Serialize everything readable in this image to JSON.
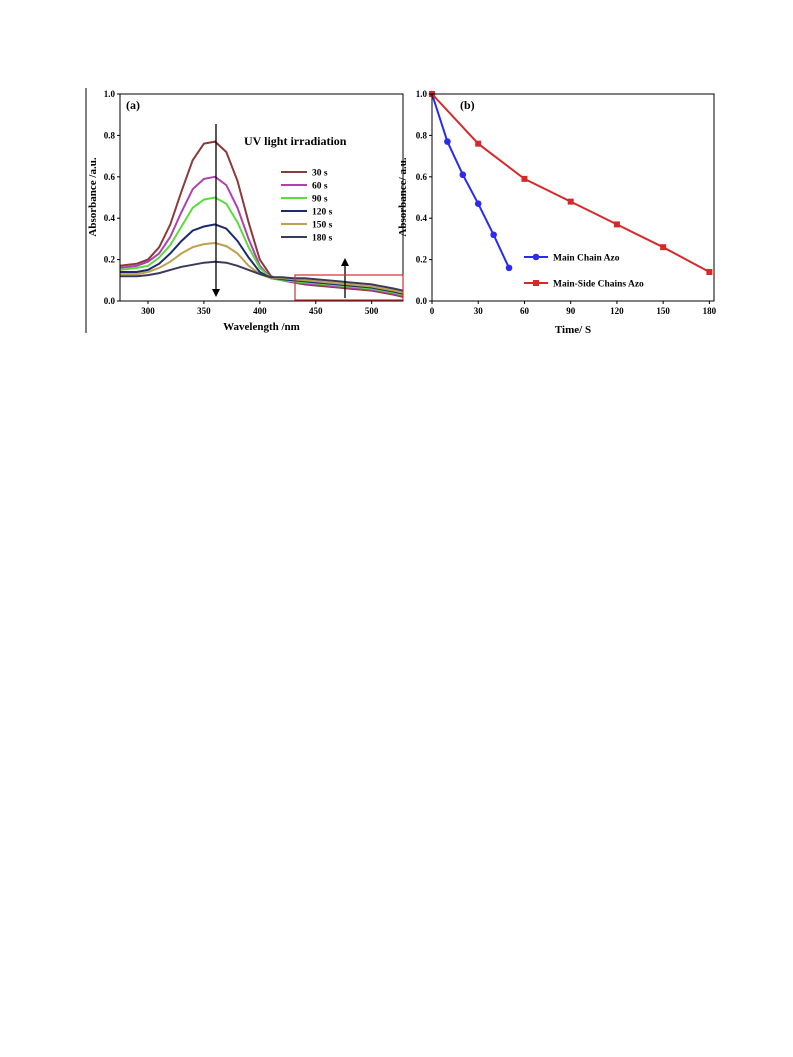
{
  "chart_data": [
    {
      "type": "line",
      "panel_label": "(a)",
      "xlabel": "Wavelength /nm",
      "ylabel": "Absorbance /a.u.",
      "xlim": [
        275,
        528
      ],
      "ylim": [
        0,
        1.0
      ],
      "xticks": [
        300,
        350,
        400,
        450,
        500
      ],
      "yticks": [
        0.0,
        0.2,
        0.4,
        0.6,
        0.8,
        1.0
      ],
      "annotation": "UV light irradiation",
      "legend_position": "top-right",
      "grid": false,
      "series": [
        {
          "name": "30 s",
          "color": "#8B3A3A",
          "x": [
            275,
            290,
            300,
            310,
            320,
            330,
            340,
            350,
            360,
            370,
            380,
            390,
            400,
            410,
            420,
            430,
            440,
            450,
            460,
            470,
            480,
            490,
            500,
            510,
            520,
            528
          ],
          "y": [
            0.17,
            0.18,
            0.2,
            0.26,
            0.37,
            0.53,
            0.68,
            0.76,
            0.77,
            0.72,
            0.58,
            0.38,
            0.2,
            0.12,
            0.1,
            0.09,
            0.08,
            0.075,
            0.07,
            0.065,
            0.06,
            0.055,
            0.05,
            0.04,
            0.03,
            0.02
          ]
        },
        {
          "name": "60 s",
          "color": "#B040B0",
          "x": [
            275,
            290,
            300,
            310,
            320,
            330,
            340,
            350,
            360,
            370,
            380,
            390,
            400,
            410,
            420,
            430,
            440,
            450,
            460,
            470,
            480,
            490,
            500,
            510,
            520,
            528
          ],
          "y": [
            0.16,
            0.17,
            0.19,
            0.23,
            0.31,
            0.43,
            0.54,
            0.59,
            0.6,
            0.56,
            0.45,
            0.3,
            0.17,
            0.11,
            0.1,
            0.09,
            0.085,
            0.08,
            0.075,
            0.07,
            0.065,
            0.06,
            0.055,
            0.045,
            0.035,
            0.025
          ]
        },
        {
          "name": "90 s",
          "color": "#5ADC3C",
          "x": [
            275,
            290,
            300,
            310,
            320,
            330,
            340,
            350,
            360,
            370,
            380,
            390,
            400,
            410,
            420,
            430,
            440,
            450,
            460,
            470,
            480,
            490,
            500,
            510,
            520,
            528
          ],
          "y": [
            0.15,
            0.16,
            0.17,
            0.21,
            0.27,
            0.36,
            0.45,
            0.49,
            0.5,
            0.47,
            0.38,
            0.26,
            0.16,
            0.11,
            0.1,
            0.095,
            0.09,
            0.085,
            0.08,
            0.075,
            0.07,
            0.065,
            0.06,
            0.05,
            0.04,
            0.03
          ]
        },
        {
          "name": "120 s",
          "color": "#1C2A6E",
          "x": [
            275,
            290,
            300,
            310,
            320,
            330,
            340,
            350,
            360,
            370,
            380,
            390,
            400,
            410,
            420,
            430,
            440,
            450,
            460,
            470,
            480,
            490,
            500,
            510,
            520,
            528
          ],
          "y": [
            0.14,
            0.14,
            0.15,
            0.18,
            0.23,
            0.29,
            0.34,
            0.36,
            0.37,
            0.35,
            0.29,
            0.21,
            0.14,
            0.11,
            0.105,
            0.1,
            0.095,
            0.09,
            0.085,
            0.08,
            0.075,
            0.07,
            0.065,
            0.055,
            0.045,
            0.035
          ]
        },
        {
          "name": "150 s",
          "color": "#BFA050",
          "x": [
            275,
            290,
            300,
            310,
            320,
            330,
            340,
            350,
            360,
            370,
            380,
            390,
            400,
            410,
            420,
            430,
            440,
            450,
            460,
            470,
            480,
            490,
            500,
            510,
            520,
            528
          ],
          "y": [
            0.13,
            0.13,
            0.14,
            0.16,
            0.19,
            0.23,
            0.26,
            0.275,
            0.28,
            0.265,
            0.23,
            0.17,
            0.13,
            0.11,
            0.11,
            0.105,
            0.1,
            0.095,
            0.09,
            0.085,
            0.08,
            0.075,
            0.07,
            0.06,
            0.05,
            0.04
          ]
        },
        {
          "name": "180 s",
          "color": "#3A3A5A",
          "x": [
            275,
            290,
            300,
            310,
            320,
            330,
            340,
            350,
            360,
            370,
            380,
            390,
            400,
            410,
            420,
            430,
            440,
            450,
            460,
            470,
            480,
            490,
            500,
            510,
            520,
            528
          ],
          "y": [
            0.12,
            0.12,
            0.125,
            0.135,
            0.15,
            0.165,
            0.175,
            0.185,
            0.19,
            0.185,
            0.17,
            0.15,
            0.13,
            0.115,
            0.115,
            0.11,
            0.11,
            0.105,
            0.1,
            0.095,
            0.09,
            0.085,
            0.08,
            0.07,
            0.06,
            0.05
          ]
        }
      ]
    },
    {
      "type": "line",
      "panel_label": "(b)",
      "xlabel": "Time/ S",
      "ylabel": "Absorbance/ a.u.",
      "xlim": [
        0,
        183
      ],
      "ylim": [
        0,
        1.0
      ],
      "xticks": [
        0,
        30,
        60,
        90,
        120,
        150,
        180
      ],
      "yticks": [
        0.0,
        0.2,
        0.4,
        0.6,
        0.8,
        1.0
      ],
      "legend_position": "bottom-center",
      "grid": false,
      "series": [
        {
          "name": "Main Chain Azo",
          "color": "#2B2BEE",
          "marker": "circle",
          "x": [
            0,
            10,
            20,
            30,
            40,
            50
          ],
          "y": [
            1.0,
            0.77,
            0.61,
            0.47,
            0.32,
            0.16
          ]
        },
        {
          "name": "Main-Side Chains Azo",
          "color": "#D42A2A",
          "marker": "square",
          "x": [
            0,
            30,
            60,
            90,
            120,
            150,
            180
          ],
          "y": [
            1.0,
            0.76,
            0.59,
            0.48,
            0.37,
            0.26,
            0.14
          ]
        }
      ]
    }
  ]
}
